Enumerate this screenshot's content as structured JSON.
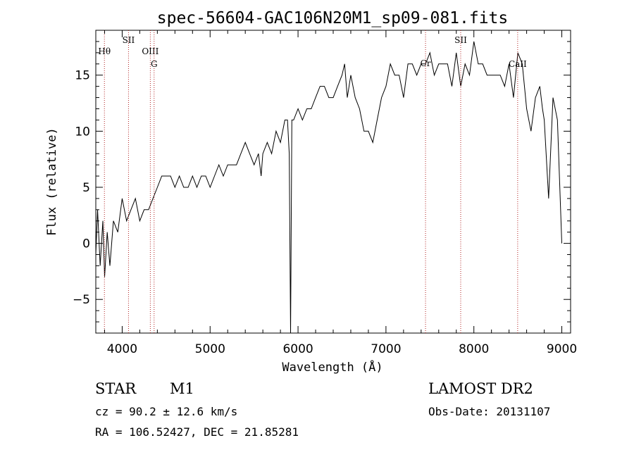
{
  "chart_data": {
    "type": "line",
    "title": "spec-56604-GAC106N20M1_sp09-081.fits",
    "xlabel": "Wavelength (Å)",
    "ylabel": "Flux (relative)",
    "xlim": [
      3700,
      9100
    ],
    "ylim": [
      -8,
      19
    ],
    "x_ticks": [
      "4000",
      "5000",
      "6000",
      "7000",
      "8000",
      "9000"
    ],
    "y_ticks": [
      "−5",
      "0",
      "5",
      "10",
      "15"
    ],
    "grid": false,
    "series": [
      {
        "x": [
          3700,
          3720,
          3750,
          3780,
          3800,
          3830,
          3860,
          3900,
          3950,
          4000,
          4050,
          4100,
          4150,
          4200,
          4250,
          4300,
          4350,
          4400,
          4450,
          4500,
          4550,
          4600,
          4650,
          4700,
          4750,
          4800,
          4850,
          4900,
          4950,
          5000,
          5050,
          5100,
          5150,
          5200,
          5250,
          5300,
          5350,
          5400,
          5450,
          5500,
          5550,
          5580,
          5600,
          5650,
          5700,
          5750,
          5800,
          5850,
          5880,
          5900,
          5915,
          5930,
          5950,
          6000,
          6050,
          6100,
          6150,
          6200,
          6250,
          6300,
          6350,
          6400,
          6450,
          6500,
          6530,
          6560,
          6600,
          6650,
          6700,
          6750,
          6800,
          6850,
          6900,
          6950,
          7000,
          7050,
          7100,
          7150,
          7200,
          7250,
          7300,
          7350,
          7400,
          7450,
          7500,
          7550,
          7600,
          7650,
          7700,
          7750,
          7800,
          7850,
          7900,
          7950,
          8000,
          8050,
          8100,
          8150,
          8200,
          8250,
          8300,
          8350,
          8400,
          8450,
          8500,
          8550,
          8600,
          8650,
          8700,
          8750,
          8780,
          8800,
          8850,
          8900,
          8950,
          9000
        ],
        "y": [
          -1,
          3,
          -2,
          2,
          -3,
          1,
          -2,
          2,
          1,
          4,
          2,
          3,
          4,
          2,
          3,
          3,
          4,
          5,
          6,
          6,
          6,
          5,
          6,
          5,
          5,
          6,
          5,
          6,
          6,
          5,
          6,
          7,
          6,
          7,
          7,
          7,
          8,
          9,
          8,
          7,
          8,
          6,
          8,
          9,
          8,
          10,
          9,
          11,
          11,
          8,
          -8,
          11,
          11,
          12,
          11,
          12,
          12,
          13,
          14,
          14,
          13,
          13,
          14,
          15,
          16,
          13,
          15,
          13,
          12,
          10,
          10,
          9,
          11,
          13,
          14,
          16,
          15,
          15,
          13,
          16,
          16,
          15,
          16,
          16,
          17,
          15,
          16,
          16,
          16,
          14,
          17,
          14,
          16,
          15,
          18,
          16,
          16,
          15,
          15,
          15,
          15,
          14,
          16,
          13,
          17,
          16,
          12,
          10,
          13,
          14,
          12,
          11,
          4,
          13,
          11,
          0
        ]
      }
    ],
    "line_markers": [
      {
        "label": "Hθ",
        "x": 3798
      },
      {
        "label": "SII",
        "x": 4072
      },
      {
        "label": "OIII",
        "x": 4320
      },
      {
        "label": "G",
        "x": 4363
      },
      {
        "label": "Cr",
        "x": 7450
      },
      {
        "label": "SII",
        "x": 7850
      },
      {
        "label": "CaII",
        "x": 8498
      }
    ]
  },
  "info": {
    "object_class": "STAR",
    "subclass": "M1",
    "survey": "LAMOST DR2",
    "cz": "cz = 90.2 ± 12.6 km/s",
    "obs_date": "Obs-Date: 20131107",
    "coords": "RA = 106.52427, DEC =  21.85281"
  }
}
